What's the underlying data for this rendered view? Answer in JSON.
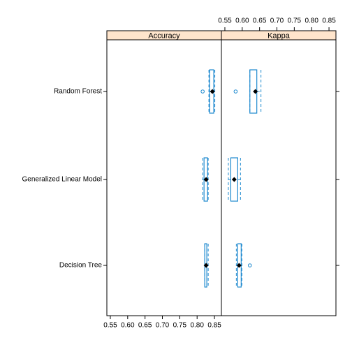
{
  "chart_data": {
    "type": "box",
    "categories": [
      "Random Forest",
      "Generalized Linear Model",
      "Decision Tree"
    ],
    "xlim": [
      0.54,
      0.87
    ],
    "xticks": [
      0.55,
      {
        "value": 0.6,
        "label": "0.60"
      },
      0.65,
      {
        "value": 0.7,
        "label": "0.70"
      },
      0.75,
      {
        "value": 0.8,
        "label": "0.80"
      },
      0.85
    ],
    "color": "#1f8acf",
    "panels": [
      {
        "title": "Accuracy",
        "boxes": [
          {
            "whislo": 0.834,
            "q1": 0.836,
            "med": 0.844,
            "q3": 0.848,
            "whishi": 0.851,
            "fliers": [
              0.816
            ]
          },
          {
            "whislo": 0.816,
            "q1": 0.82,
            "med": 0.826,
            "q3": 0.83,
            "whishi": 0.832,
            "fliers": []
          },
          {
            "whislo": 0.822,
            "q1": 0.822,
            "med": 0.826,
            "q3": 0.828,
            "whishi": 0.832,
            "fliers": []
          }
        ]
      },
      {
        "title": "Kappa",
        "boxes": [
          {
            "whislo": 0.622,
            "q1": 0.622,
            "med": 0.638,
            "q3": 0.642,
            "whishi": 0.654,
            "fliers": [
              0.581
            ]
          },
          {
            "whislo": 0.56,
            "q1": 0.567,
            "med": 0.577,
            "q3": 0.587,
            "whishi": 0.595,
            "fliers": []
          },
          {
            "whislo": 0.583,
            "q1": 0.587,
            "med": 0.591,
            "q3": 0.597,
            "whishi": 0.599,
            "fliers": [
              0.622
            ]
          }
        ]
      }
    ]
  }
}
